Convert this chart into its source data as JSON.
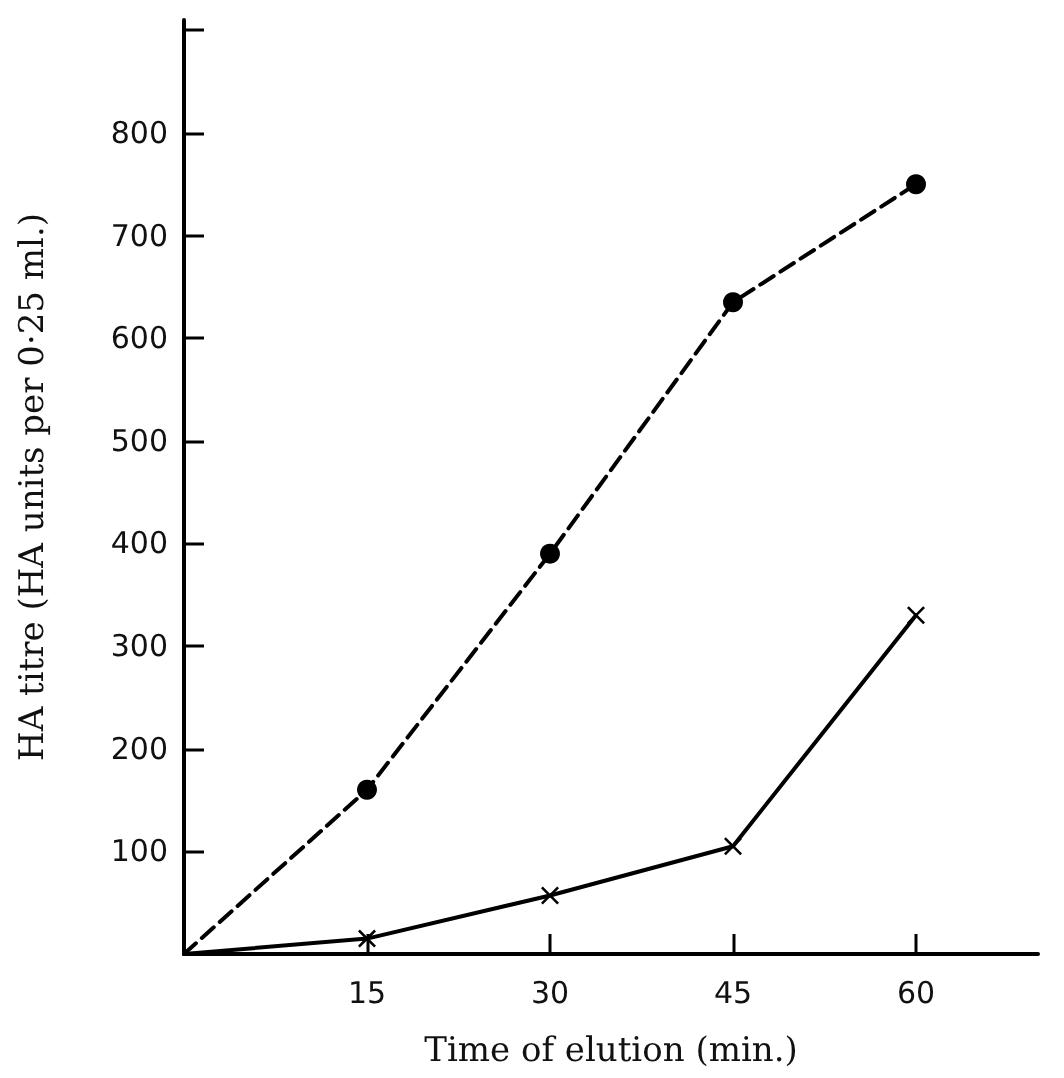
{
  "chart_data": {
    "type": "line",
    "xlabel": "Time of elution (min.)",
    "ylabel": "HA titre (HA units per 0·25 ml.)",
    "series": [
      {
        "x": [
          0,
          15,
          30,
          45,
          60
        ],
        "values": [
          0,
          160,
          390,
          635,
          750
        ],
        "color": "#000000",
        "marker": "circle",
        "line_style": "dashed"
      },
      {
        "x": [
          0,
          15,
          30,
          45,
          60
        ],
        "values": [
          0,
          15,
          57,
          105,
          330
        ],
        "color": "#000000",
        "marker": "cross",
        "line_style": "solid"
      }
    ],
    "xlim": [
      0,
      70
    ],
    "xticks": [
      15,
      30,
      45,
      60
    ],
    "ylim": [
      0,
      910
    ],
    "yticks": [
      100,
      200,
      300,
      400,
      500,
      600,
      700,
      800,
      {
        "value": 900,
        "label": null
      }
    ],
    "grid": false
  }
}
